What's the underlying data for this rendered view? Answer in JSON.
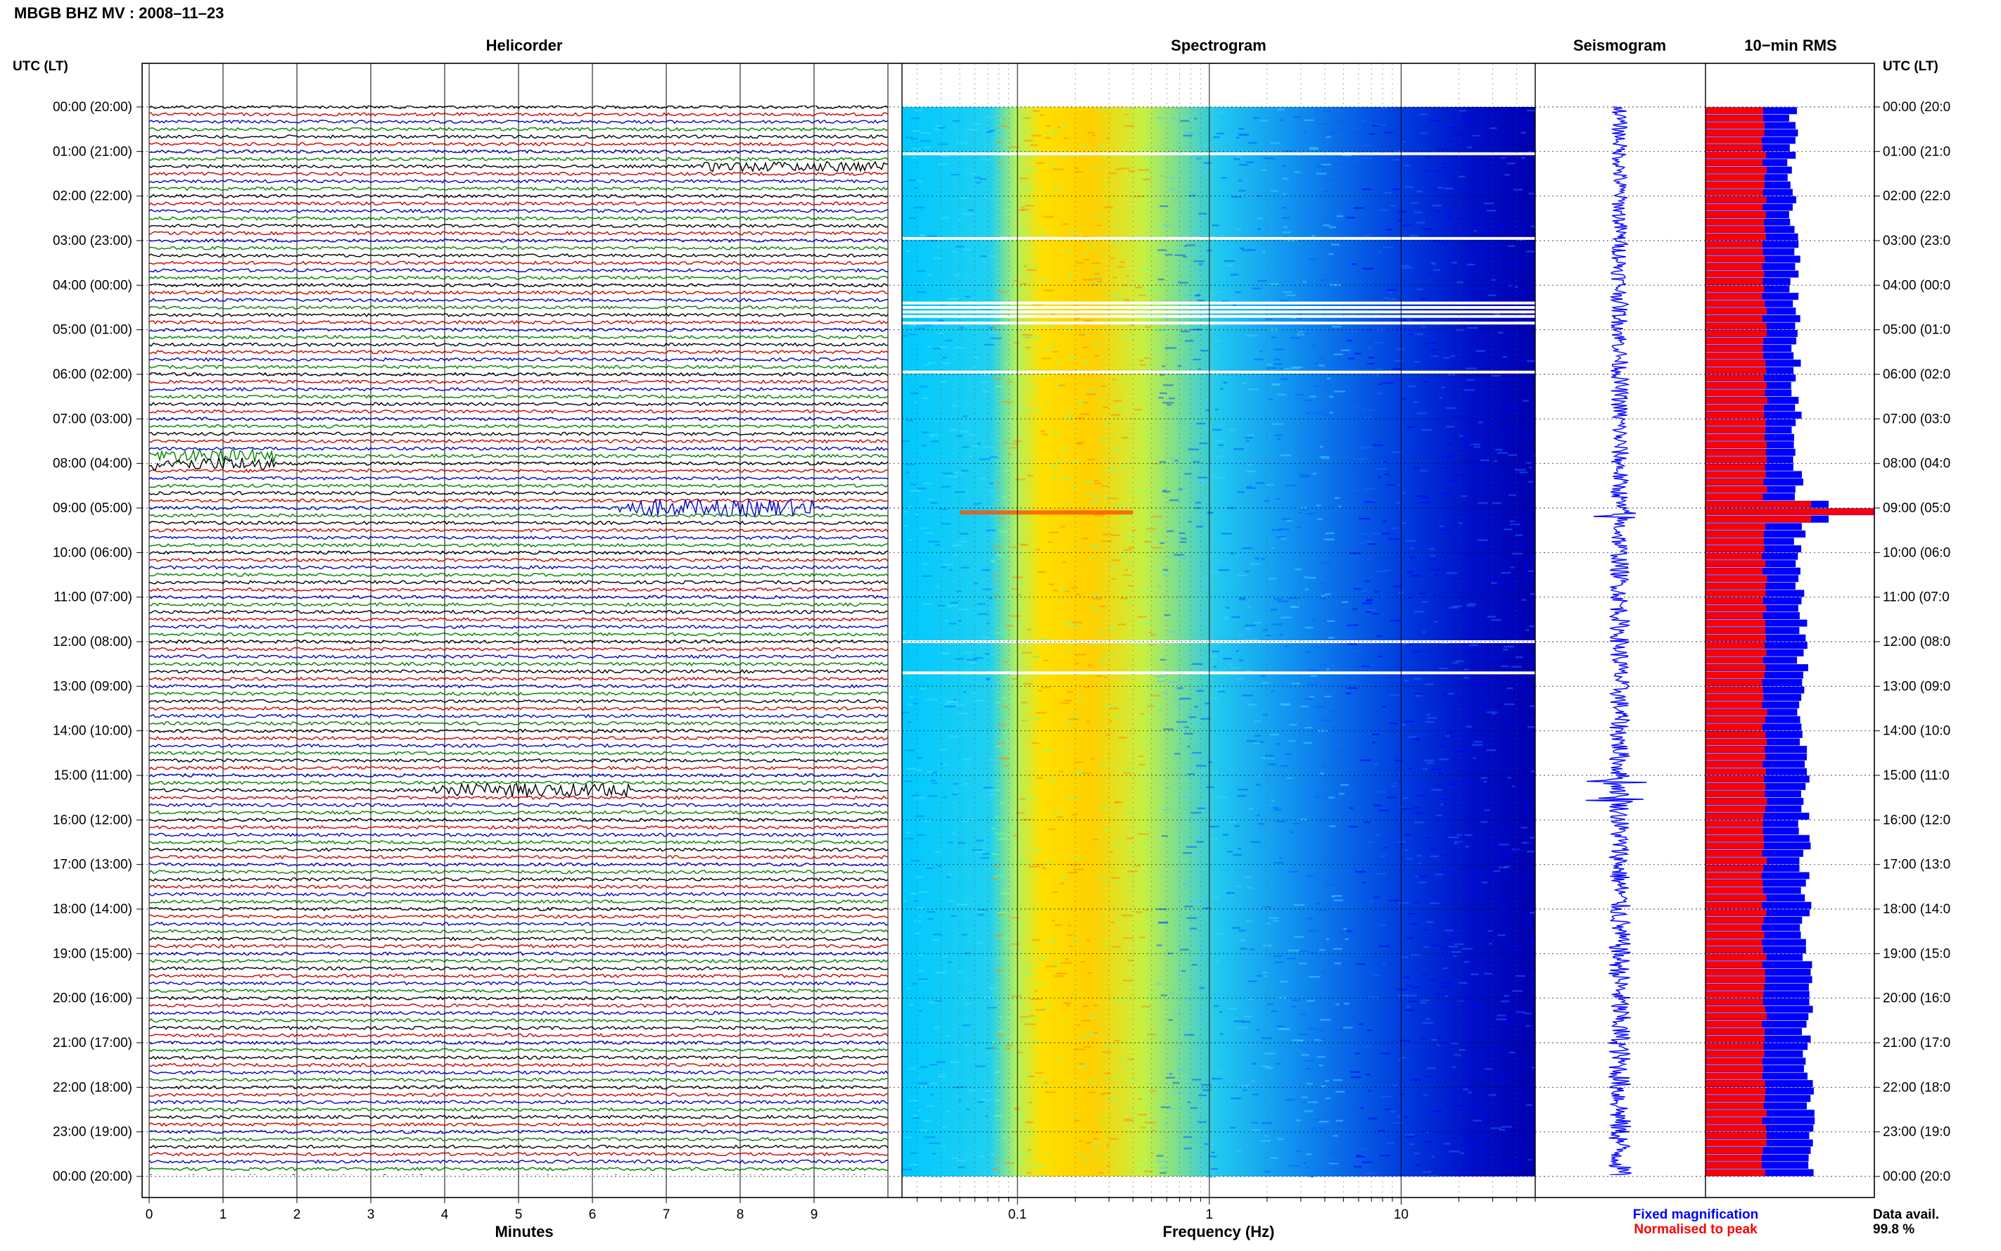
{
  "header": {
    "title": "MBGB BHZ MV : 2008–11–23",
    "utc_label_left": "UTC (LT)",
    "utc_label_right": "UTC (LT)"
  },
  "panels": {
    "helicorder": "Helicorder",
    "spectrogram": "Spectrogram",
    "seismogram": "Seismogram",
    "rms": "10−min RMS"
  },
  "time_labels_left": [
    "00:00 (20:00)",
    "01:00 (21:00)",
    "02:00 (22:00)",
    "03:00 (23:00)",
    "04:00 (00:00)",
    "05:00 (01:00)",
    "06:00 (02:00)",
    "07:00 (03:00)",
    "08:00 (04:00)",
    "09:00 (05:00)",
    "10:00 (06:00)",
    "11:00 (07:00)",
    "12:00 (08:00)",
    "13:00 (09:00)",
    "14:00 (10:00)",
    "15:00 (11:00)",
    "16:00 (12:00)",
    "17:00 (13:00)",
    "18:00 (14:00)",
    "19:00 (15:00)",
    "20:00 (16:00)",
    "21:00 (17:00)",
    "22:00 (18:00)",
    "23:00 (19:00)",
    "00:00 (20:00)"
  ],
  "time_labels_right": [
    "00:00 (20:0",
    "01:00 (21:0",
    "02:00 (22:0",
    "03:00 (23:0",
    "04:00 (00:0",
    "05:00 (01:0",
    "06:00 (02:0",
    "07:00 (03:0",
    "08:00 (04:0",
    "09:00 (05:0",
    "10:00 (06:0",
    "11:00 (07:0",
    "12:00 (08:0",
    "13:00 (09:0",
    "14:00 (10:0",
    "15:00 (11:0",
    "16:00 (12:0",
    "17:00 (13:0",
    "18:00 (14:0",
    "19:00 (15:0",
    "20:00 (16:0",
    "21:00 (17:0",
    "22:00 (18:0",
    "23:00 (19:0",
    "00:00 (20:0"
  ],
  "chart_data": [
    {
      "type": "line",
      "panel": "helicorder",
      "xlabel": "Minutes",
      "x_ticks": [
        "0",
        "1",
        "2",
        "3",
        "4",
        "5",
        "6",
        "7",
        "8",
        "9"
      ],
      "xlim": [
        0,
        10
      ],
      "rows_per_hour": 6,
      "trace_colors": [
        "#000000",
        "#cc0000",
        "#0000cc",
        "#008000"
      ],
      "events": [
        {
          "hour": 1.3,
          "minute": 8.7,
          "amp": 2.0
        },
        {
          "hour": 7.9,
          "minute": 0.2,
          "amp": 3.0
        },
        {
          "hour": 9.0,
          "minute": 7.5,
          "amp": 4.0
        },
        {
          "hour": 15.3,
          "minute": 5.0,
          "amp": 3.0
        }
      ]
    },
    {
      "type": "heatmap",
      "panel": "spectrogram",
      "xlabel": "Frequency (Hz)",
      "x_scale": "log",
      "xlim": [
        0.025,
        50
      ],
      "x_ticks": [
        "0.1",
        "1",
        "10"
      ],
      "x_tick_values": [
        0.1,
        1,
        10
      ],
      "colormap": [
        "#00007f",
        "#0000ff",
        "#007fff",
        "#00ffff",
        "#7fff7f",
        "#ffff00",
        "#ff7f00",
        "#ff0000"
      ],
      "data_gaps_hours": [
        1.05,
        2.95,
        4.4,
        4.5,
        4.6,
        4.7,
        4.85,
        5.95,
        12.0,
        12.7
      ]
    },
    {
      "type": "line",
      "panel": "seismogram",
      "color": "#0000ff",
      "events_hours": [
        9.15,
        15.15,
        15.55
      ]
    },
    {
      "type": "bar",
      "panel": "rms",
      "bins_per_hour": 6,
      "series": [
        {
          "name": "Fixed magnification",
          "color": "#0000ff"
        },
        {
          "name": "Normalised to peak",
          "color": "#ff0000"
        }
      ],
      "peak_hour": 9.0
    }
  ],
  "legend": {
    "fixed": "Fixed magnification",
    "normalised": "Normalised to peak",
    "fixed_color": "#0000ff",
    "normalised_color": "#ff0000"
  },
  "availability": {
    "label": "Data avail.",
    "value": "99.8 %"
  }
}
